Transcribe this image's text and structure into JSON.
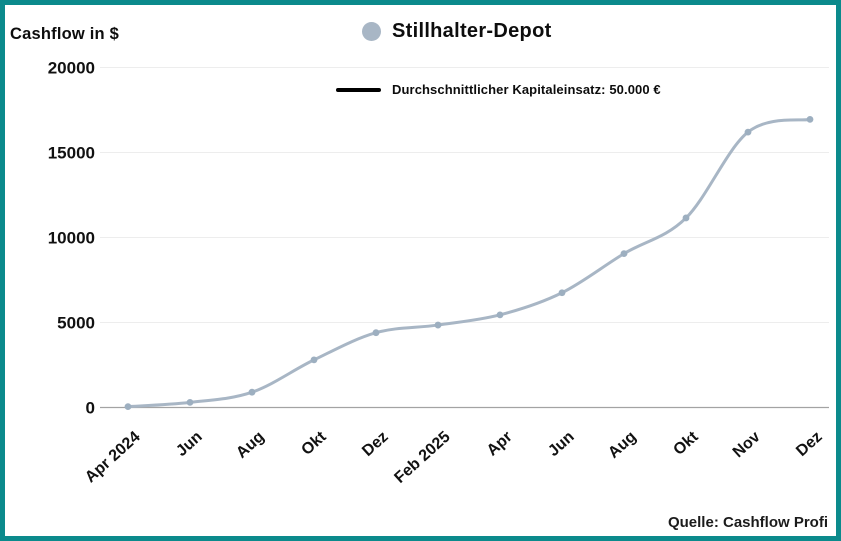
{
  "frame": {
    "border_color": "#0b8a8c",
    "background_color": "#ffffff"
  },
  "header": {
    "y_axis_title": "Cashflow in $",
    "series_legend": {
      "label": "Stillhalter-Depot",
      "marker": "circle",
      "marker_color": "#a8b6c5"
    },
    "capital_legend": {
      "label": "Durchschnittlicher Kapitaleinsatz: 50.000 €",
      "swatch": "line",
      "swatch_color": "#000000"
    }
  },
  "footer": {
    "source": "Quelle: Cashflow Profi"
  },
  "chart_data": {
    "type": "line",
    "title": "Stillhalter-Depot",
    "ylabel": "Cashflow in $",
    "xlabel": "",
    "categories": [
      "Apr 2024",
      "Jun",
      "Aug",
      "Okt",
      "Dez",
      "Feb 2025",
      "Apr",
      "Jun",
      "Aug",
      "Okt",
      "Nov",
      "Dez"
    ],
    "series": [
      {
        "name": "Stillhalter-Depot",
        "color": "#a8b6c5",
        "marker_color": "#9dafc0",
        "values": [
          50,
          300,
          900,
          2800,
          4400,
          4850,
          5450,
          6750,
          9050,
          11150,
          16200,
          16950
        ]
      }
    ],
    "annotations": [
      "Durchschnittlicher Kapitaleinsatz: 50.000 €"
    ],
    "ylim": [
      0,
      20000
    ],
    "yticks": [
      0,
      5000,
      10000,
      15000,
      20000
    ],
    "grid": true,
    "gridline_color": "#ededed",
    "axis_line_color": "#a3a3a3",
    "legend_position": "top",
    "x_tick_rotation": -42
  }
}
